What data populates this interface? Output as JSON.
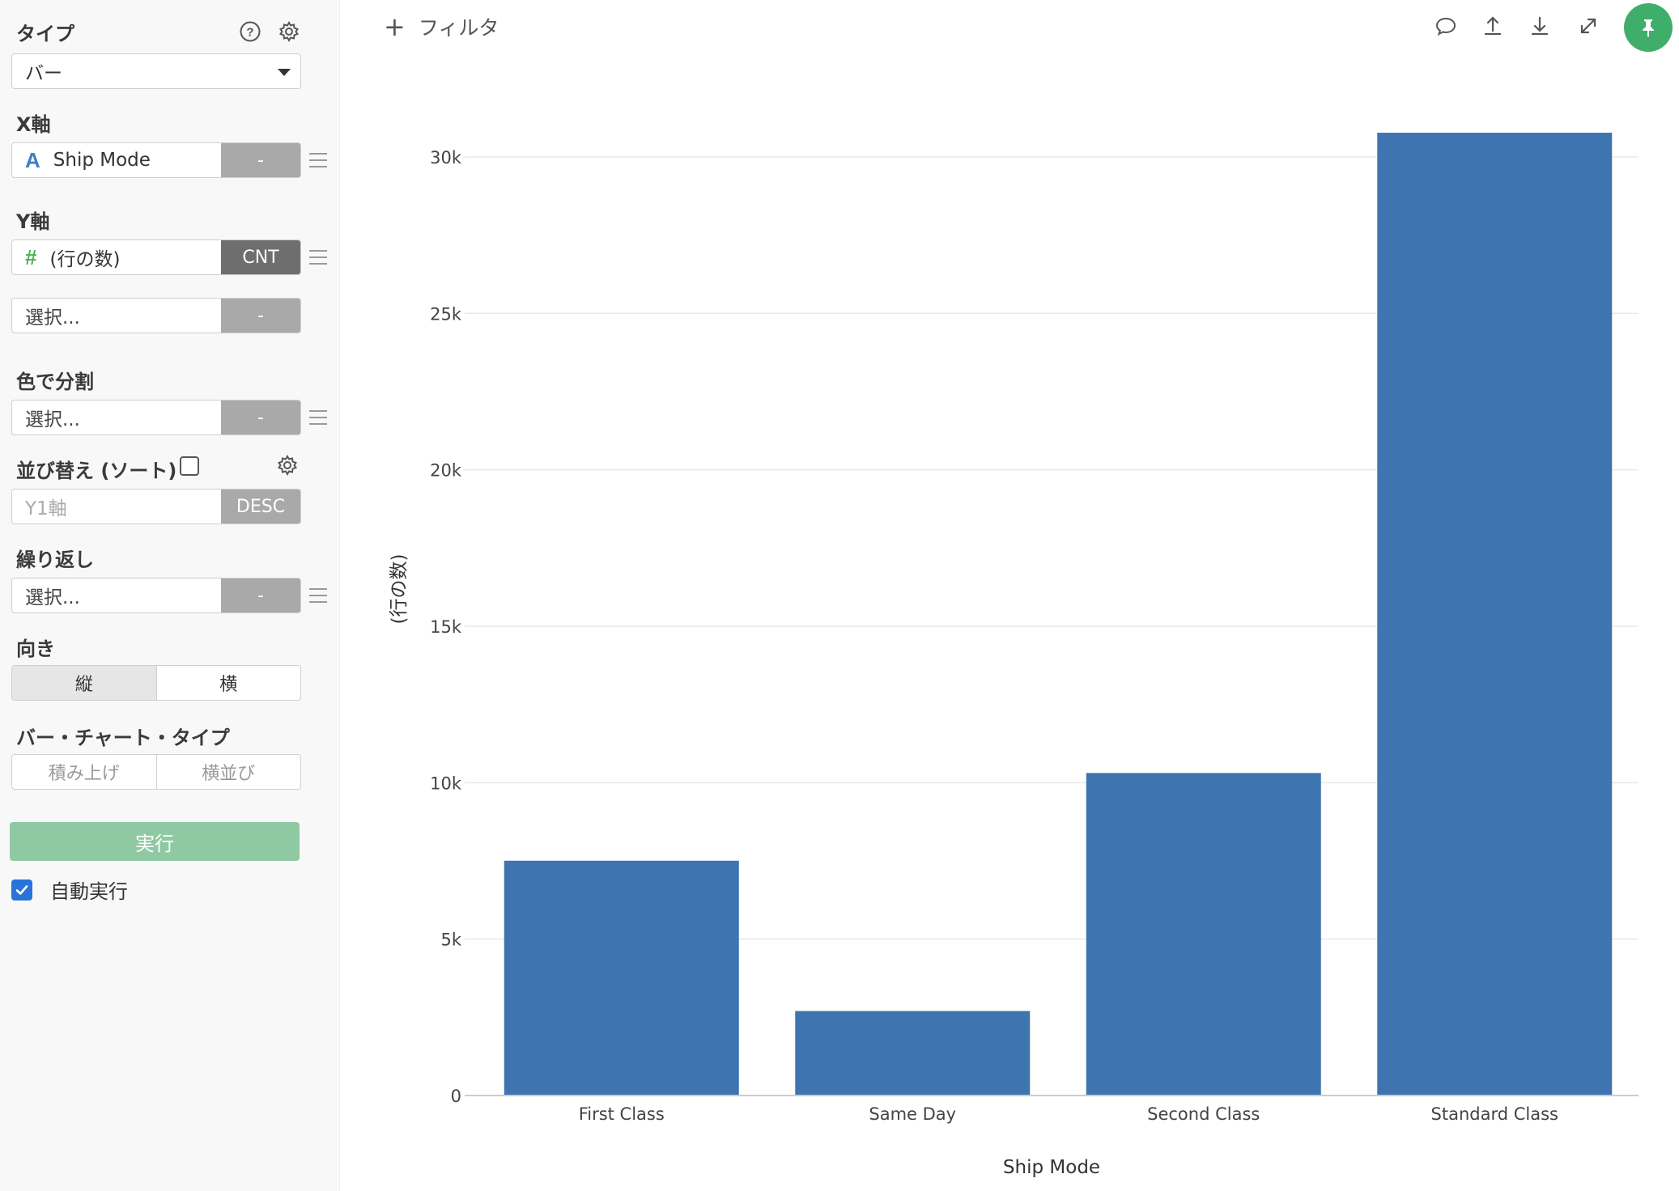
{
  "sidebar": {
    "type_label": "タイプ",
    "type_value": "バー",
    "xaxis_label": "X軸",
    "xaxis_type_icon": "A",
    "xaxis_field": "Ship Mode",
    "xaxis_agg": "-",
    "yaxis_label": "Y軸",
    "yaxis_type_icon": "#",
    "yaxis_field": "(行の数)",
    "yaxis_agg": "CNT",
    "yaxis2_placeholder": "選択...",
    "yaxis2_agg": "-",
    "color_label": "色で分割",
    "color_placeholder": "選択...",
    "color_agg": "-",
    "sort_label": "並び替え (ソート)",
    "sort_field": "Y1軸",
    "sort_order": "DESC",
    "repeat_label": "繰り返し",
    "repeat_placeholder": "選択...",
    "repeat_agg": "-",
    "orientation_label": "向き",
    "orientation_options": [
      "縦",
      "横"
    ],
    "barchart_type_label": "バー・チャート・タイプ",
    "barchart_type_options": [
      "積み上げ",
      "横並び"
    ],
    "run_label": "実行",
    "auto_run_label": "自動実行"
  },
  "toolbar": {
    "filter_plus": "+",
    "filter_label": "フィルタ"
  },
  "colors": {
    "bar": "#3e75b0",
    "run_button": "#8fc9a3",
    "pin_button": "#3fae6a",
    "checkbox": "#2a73d9"
  },
  "chart_data": {
    "type": "bar",
    "categories": [
      "First Class",
      "Same Day",
      "Second Class",
      "Standard Class"
    ],
    "values": [
      7505,
      2701,
      10309,
      30775
    ],
    "xlabel": "Ship Mode",
    "ylabel": "(行の数)",
    "ylim": [
      0,
      30000
    ],
    "yticks": [
      0,
      5000,
      10000,
      15000,
      20000,
      25000,
      30000
    ],
    "ytick_labels": [
      "0",
      "5k",
      "10k",
      "15k",
      "20k",
      "25k",
      "30k"
    ],
    "grid": true,
    "legend": false
  }
}
